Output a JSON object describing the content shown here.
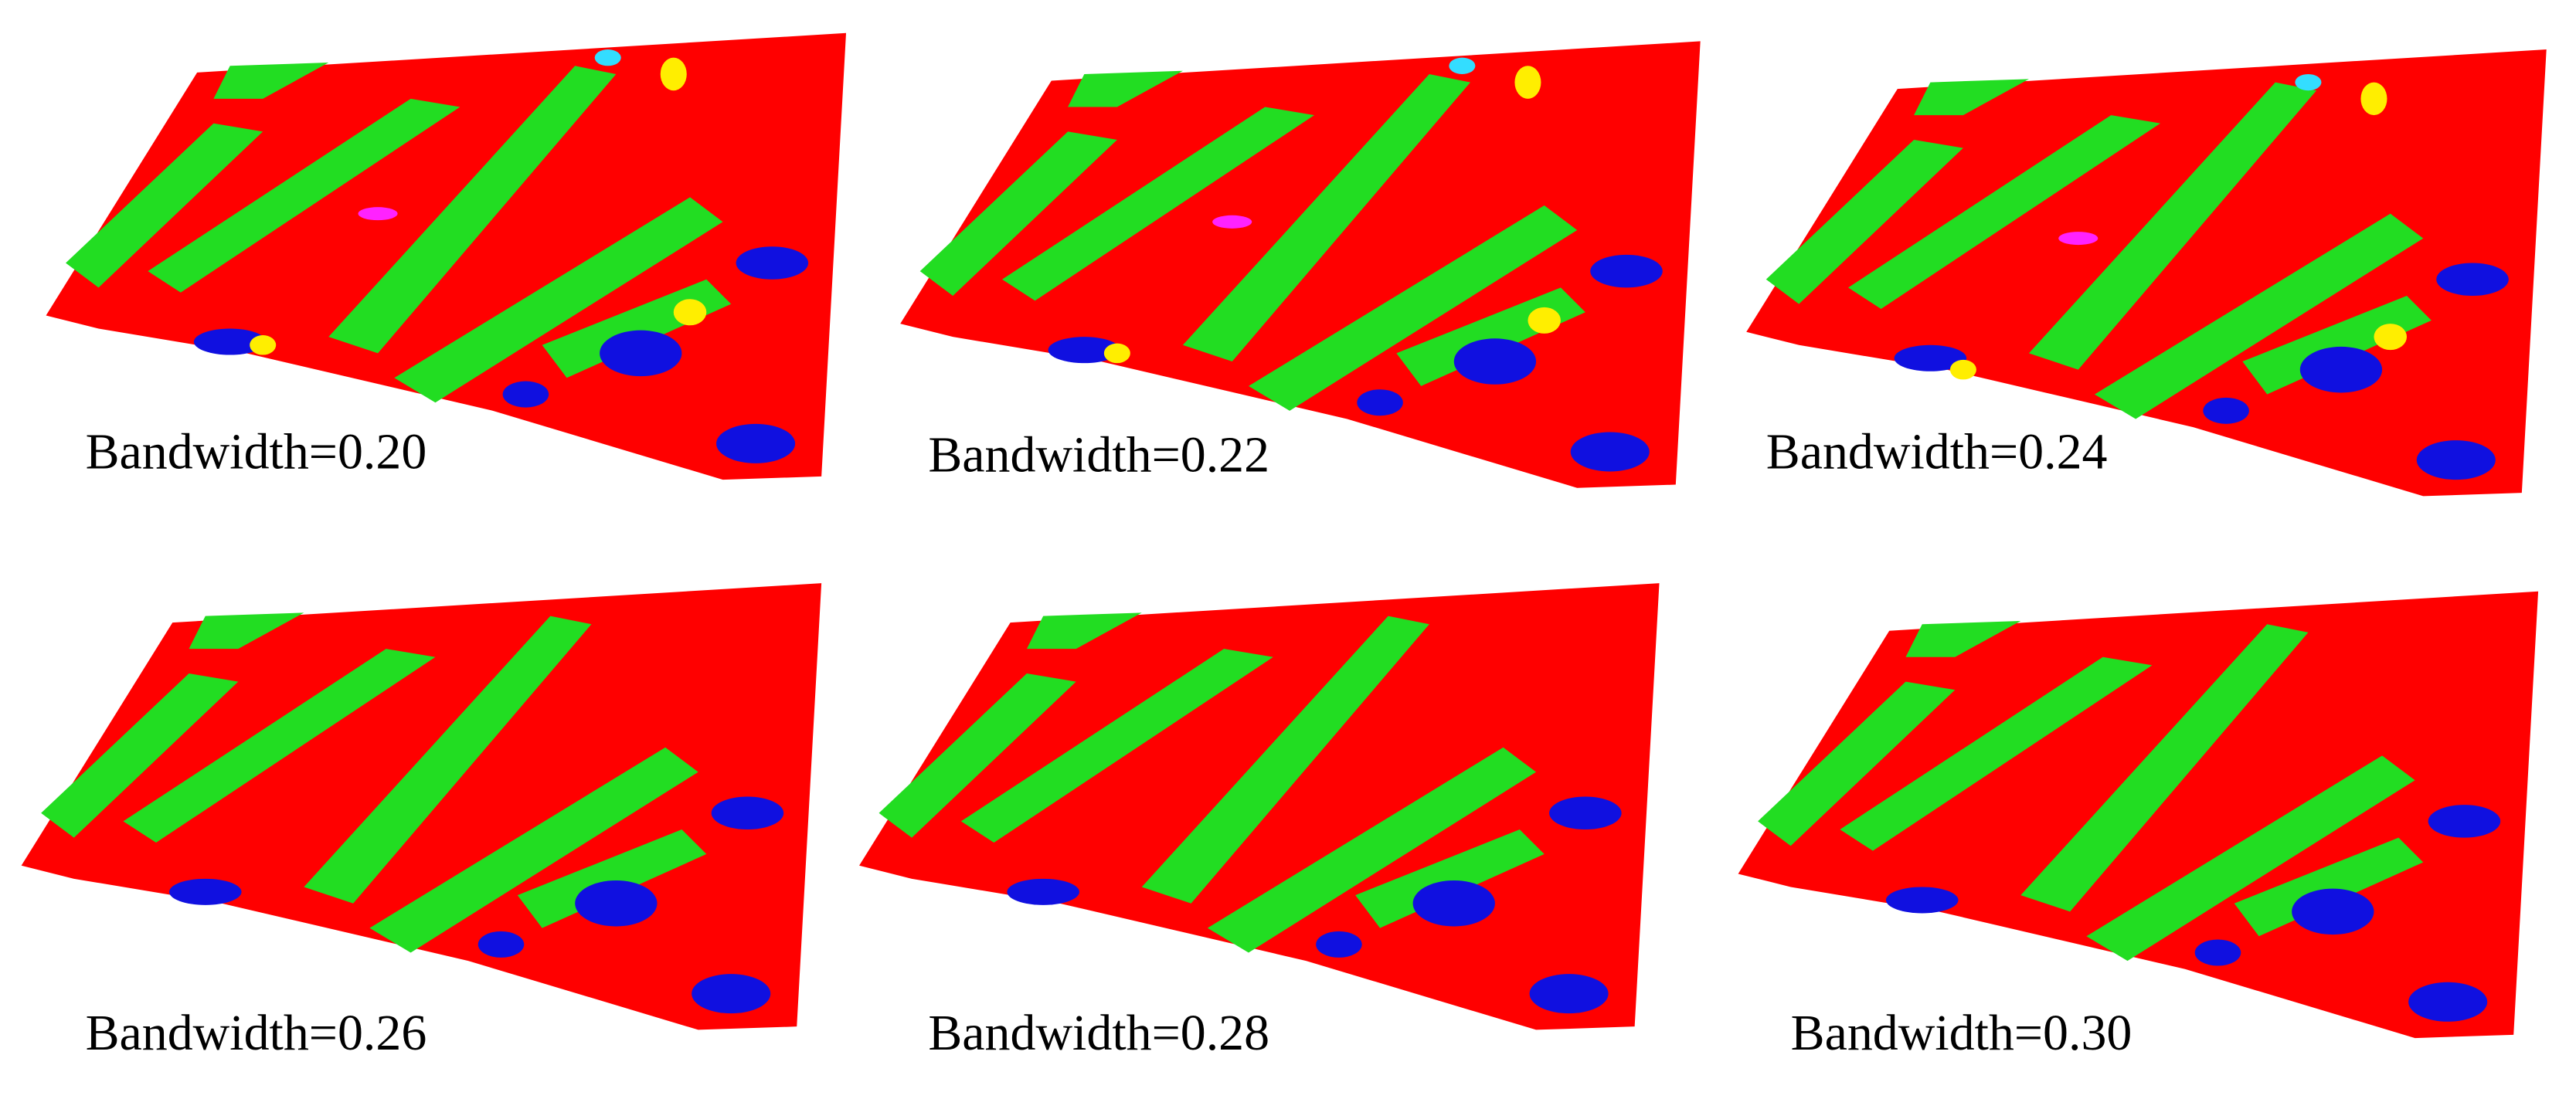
{
  "panels": [
    {
      "label": "Bandwidth=0.20"
    },
    {
      "label": "Bandwidth=0.22"
    },
    {
      "label": "Bandwidth=0.24"
    },
    {
      "label": "Bandwidth=0.26"
    },
    {
      "label": "Bandwidth=0.28"
    },
    {
      "label": "Bandwidth=0.30"
    }
  ]
}
